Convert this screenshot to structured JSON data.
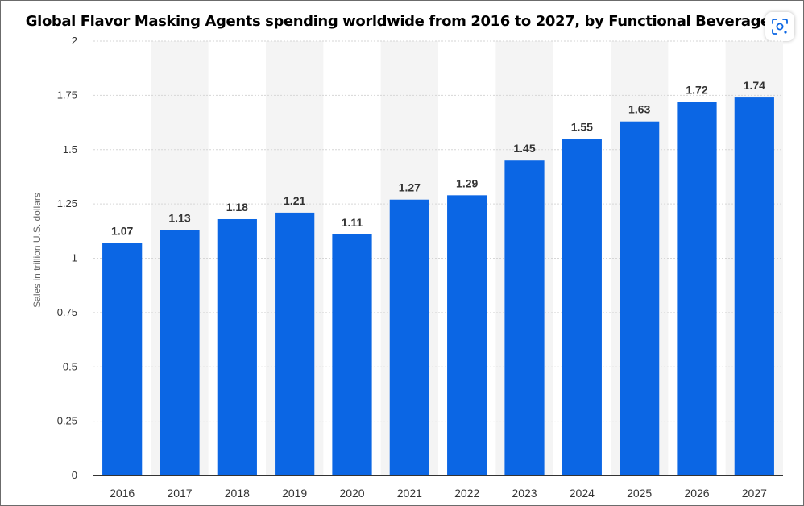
{
  "header": {
    "title": "Global Flavor Masking Agents spending worldwide from 2016 to 2027, by Functional Beverages"
  },
  "toolbar": {
    "lens_icon": "google-lens-icon"
  },
  "colors": {
    "bar": "#0b66e4",
    "band": "#f4f4f4",
    "grid": "#d6d6d6",
    "axis": "#333333"
  },
  "chart_data": {
    "type": "bar",
    "categories": [
      "2016",
      "2017",
      "2018",
      "2019",
      "2020",
      "2021",
      "2022",
      "2023",
      "2024",
      "2025",
      "2026",
      "2027"
    ],
    "values": [
      1.07,
      1.13,
      1.18,
      1.21,
      1.11,
      1.27,
      1.29,
      1.45,
      1.55,
      1.63,
      1.72,
      1.74
    ],
    "value_labels": [
      "1.07",
      "1.13",
      "1.18",
      "1.21",
      "1.11",
      "1.27",
      "1.29",
      "1.45",
      "1.55",
      "1.63",
      "1.72",
      "1.74"
    ],
    "title": "Global Flavor Masking Agents spending worldwide from 2016 to 2027, by Functional Beverages",
    "xlabel": "",
    "ylabel": "Sales in trillion U.S. dollars",
    "ylim": [
      0,
      2
    ],
    "yticks": [
      0,
      0.25,
      0.5,
      0.75,
      1,
      1.25,
      1.5,
      1.75,
      2
    ],
    "ytick_labels": [
      "0",
      "0.25",
      "0.5",
      "0.75",
      "1",
      "1.25",
      "1.5",
      "1.75",
      "2"
    ],
    "grid": true,
    "legend": "none"
  }
}
